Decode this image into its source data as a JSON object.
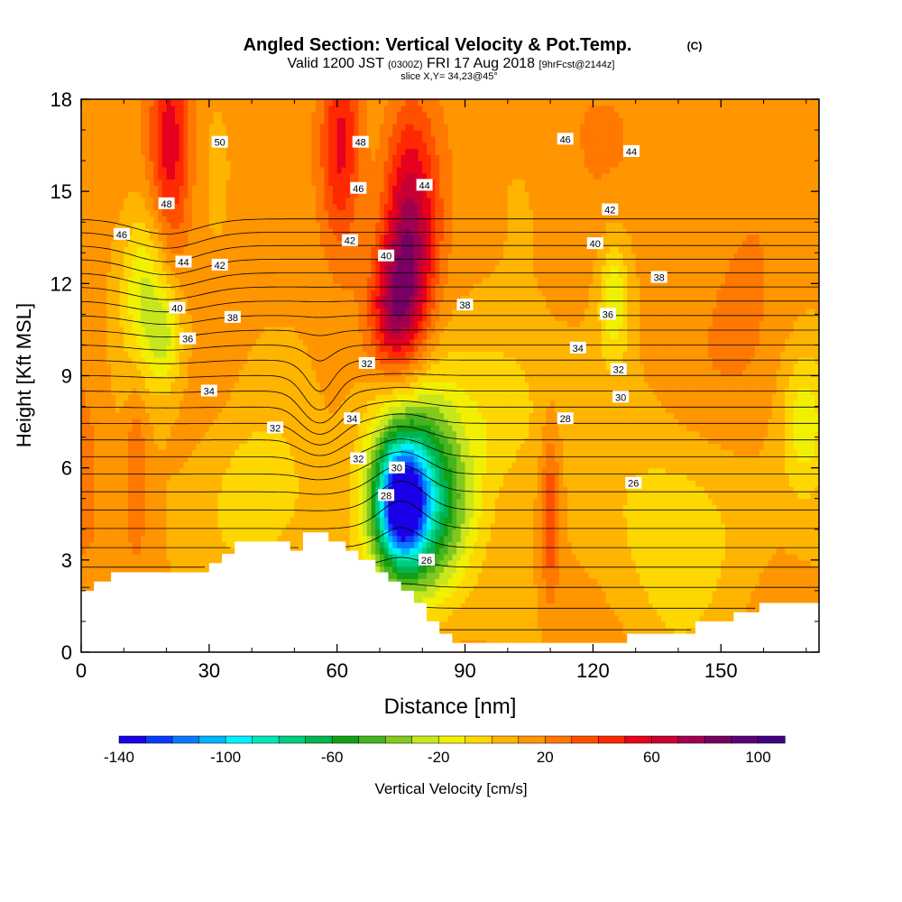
{
  "header": {
    "title": "Angled Section: Vertical Velocity & Pot.Temp.",
    "title_tag": "(C)",
    "valid_prefix": "Valid 1200 JST",
    "valid_utc": "(0300Z)",
    "valid_date": "FRI 17 Aug 2018",
    "forecast": "[9hrFcst@2144z]",
    "slice": "slice X,Y= 34,23@45°"
  },
  "chart_data": {
    "type": "heatmap",
    "xlabel": "Distance [nm]",
    "ylabel": "Height [Kft MSL]",
    "xlim": [
      0,
      173
    ],
    "ylim": [
      0,
      18
    ],
    "x_ticks": [
      0,
      30,
      60,
      90,
      120,
      150
    ],
    "y_ticks": [
      0,
      3,
      6,
      9,
      12,
      15,
      18
    ],
    "grid": false,
    "colorbar": {
      "label": "Vertical Velocity [cm/s]",
      "min": -140,
      "max": 110,
      "step": 10,
      "tick_values": [
        -140,
        -100,
        -60,
        -20,
        20,
        60,
        100
      ],
      "colors": [
        "#1a00e6",
        "#0a3cff",
        "#0a78ff",
        "#00b4ff",
        "#00f0ff",
        "#00e6b4",
        "#00cc80",
        "#00b450",
        "#14a014",
        "#46b41e",
        "#82c81e",
        "#c8e61e",
        "#f0f000",
        "#ffd700",
        "#ffb400",
        "#ff9600",
        "#ff7800",
        "#ff5000",
        "#ff2800",
        "#e6001e",
        "#c80032",
        "#a00050",
        "#780064",
        "#5a0078",
        "#400080"
      ]
    },
    "terrain_profile": {
      "x": [
        0,
        3,
        3,
        7,
        7,
        10,
        10,
        30,
        30,
        33,
        33,
        36,
        36,
        49,
        49,
        52,
        52,
        58,
        58,
        62,
        62,
        65,
        65,
        69,
        69,
        72,
        72,
        75,
        75,
        78,
        78,
        81,
        81,
        84,
        84,
        87,
        87,
        105,
        105,
        128,
        128,
        144,
        144,
        153,
        153,
        159,
        159,
        173
      ],
      "height": [
        2.0,
        2.0,
        2.3,
        2.3,
        2.6,
        2.6,
        2.6,
        2.6,
        2.9,
        2.9,
        3.2,
        3.2,
        3.6,
        3.6,
        3.3,
        3.3,
        3.9,
        3.9,
        3.6,
        3.6,
        3.3,
        3.3,
        3.0,
        3.0,
        2.6,
        2.6,
        2.3,
        2.3,
        2.0,
        2.0,
        1.6,
        1.6,
        1.0,
        1.0,
        0.6,
        0.6,
        0.3,
        0.3,
        0.3,
        0.3,
        0.6,
        0.6,
        1.0,
        1.0,
        1.3,
        1.3,
        1.6,
        1.6
      ]
    },
    "velocity_field": {
      "background": 12,
      "features": [
        {
          "x": 21,
          "y": 16.5,
          "sx": 3.5,
          "sy": 2.5,
          "value": 58
        },
        {
          "x": 61,
          "y": 16.5,
          "sx": 3.5,
          "sy": 2.5,
          "value": 55
        },
        {
          "x": 77,
          "y": 13.5,
          "sx": 4.5,
          "sy": 2.8,
          "value": 75
        },
        {
          "x": 73,
          "y": 11.0,
          "sx": 4.0,
          "sy": 1.5,
          "value": 55
        },
        {
          "x": 75,
          "y": 4.8,
          "sx": 4.0,
          "sy": 1.3,
          "value": -95
        },
        {
          "x": 77,
          "y": 5.5,
          "sx": 7.5,
          "sy": 2.5,
          "value": -58
        },
        {
          "x": 84,
          "y": 4.5,
          "sx": 7.0,
          "sy": 2.0,
          "value": -22
        },
        {
          "x": 15,
          "y": 11.8,
          "sx": 4.0,
          "sy": 2.0,
          "value": -22
        },
        {
          "x": 20,
          "y": 10.2,
          "sx": 3.0,
          "sy": 1.2,
          "value": -14
        },
        {
          "x": 125,
          "y": 11.5,
          "sx": 2.5,
          "sy": 1.5,
          "value": -18
        },
        {
          "x": 170,
          "y": 7.5,
          "sx": 4.0,
          "sy": 1.8,
          "value": -18
        },
        {
          "x": 110,
          "y": 4.5,
          "sx": 1.5,
          "sy": 2.0,
          "value": 42
        },
        {
          "x": 13,
          "y": 6.0,
          "sx": 2.0,
          "sy": 2.0,
          "value": 32
        },
        {
          "x": 0,
          "y": 6.0,
          "sx": 5.0,
          "sy": 3.0,
          "value": 24
        },
        {
          "x": 155,
          "y": 10.0,
          "sx": 8.0,
          "sy": 3.0,
          "value": 24
        },
        {
          "x": 122,
          "y": 17.0,
          "sx": 15.0,
          "sy": 2.0,
          "value": 18
        },
        {
          "x": 140,
          "y": 4.0,
          "sx": 12.0,
          "sy": 2.5,
          "value": -8
        },
        {
          "x": 40,
          "y": 5.0,
          "sx": 10.0,
          "sy": 2.0,
          "value": -6
        },
        {
          "x": 100,
          "y": 8.0,
          "sx": 8.0,
          "sy": 2.0,
          "value": -8
        }
      ]
    },
    "isentropes": {
      "labels": [
        {
          "text": "50",
          "x": 32.5,
          "y": 16.6
        },
        {
          "text": "48",
          "x": 65.5,
          "y": 16.6
        },
        {
          "text": "46",
          "x": 65.0,
          "y": 15.1
        },
        {
          "text": "44",
          "x": 80.5,
          "y": 15.2
        },
        {
          "text": "48",
          "x": 20.0,
          "y": 14.6
        },
        {
          "text": "46",
          "x": 9.5,
          "y": 13.6
        },
        {
          "text": "44",
          "x": 24.0,
          "y": 12.7
        },
        {
          "text": "42",
          "x": 32.5,
          "y": 12.6
        },
        {
          "text": "42",
          "x": 63.0,
          "y": 13.4
        },
        {
          "text": "40",
          "x": 71.5,
          "y": 12.9
        },
        {
          "text": "40",
          "x": 22.5,
          "y": 11.2
        },
        {
          "text": "38",
          "x": 35.5,
          "y": 10.9
        },
        {
          "text": "38",
          "x": 90.0,
          "y": 11.3
        },
        {
          "text": "36",
          "x": 25.0,
          "y": 10.2
        },
        {
          "text": "34",
          "x": 30.0,
          "y": 8.5
        },
        {
          "text": "32",
          "x": 45.5,
          "y": 7.3
        },
        {
          "text": "32",
          "x": 67.0,
          "y": 9.4
        },
        {
          "text": "34",
          "x": 63.5,
          "y": 7.6
        },
        {
          "text": "32",
          "x": 65.0,
          "y": 6.3
        },
        {
          "text": "30",
          "x": 74.0,
          "y": 6.0
        },
        {
          "text": "28",
          "x": 71.5,
          "y": 5.1
        },
        {
          "text": "26",
          "x": 81.0,
          "y": 3.0
        },
        {
          "text": "46",
          "x": 113.5,
          "y": 16.7
        },
        {
          "text": "44",
          "x": 129.0,
          "y": 16.3
        },
        {
          "text": "42",
          "x": 124.0,
          "y": 14.4
        },
        {
          "text": "40",
          "x": 120.5,
          "y": 13.3
        },
        {
          "text": "38",
          "x": 135.5,
          "y": 12.2
        },
        {
          "text": "36",
          "x": 123.5,
          "y": 11.0
        },
        {
          "text": "34",
          "x": 116.5,
          "y": 9.9
        },
        {
          "text": "32",
          "x": 126.0,
          "y": 9.2
        },
        {
          "text": "30",
          "x": 126.5,
          "y": 8.3
        },
        {
          "text": "28",
          "x": 113.5,
          "y": 7.6
        },
        {
          "text": "26",
          "x": 129.5,
          "y": 5.5
        }
      ]
    }
  }
}
